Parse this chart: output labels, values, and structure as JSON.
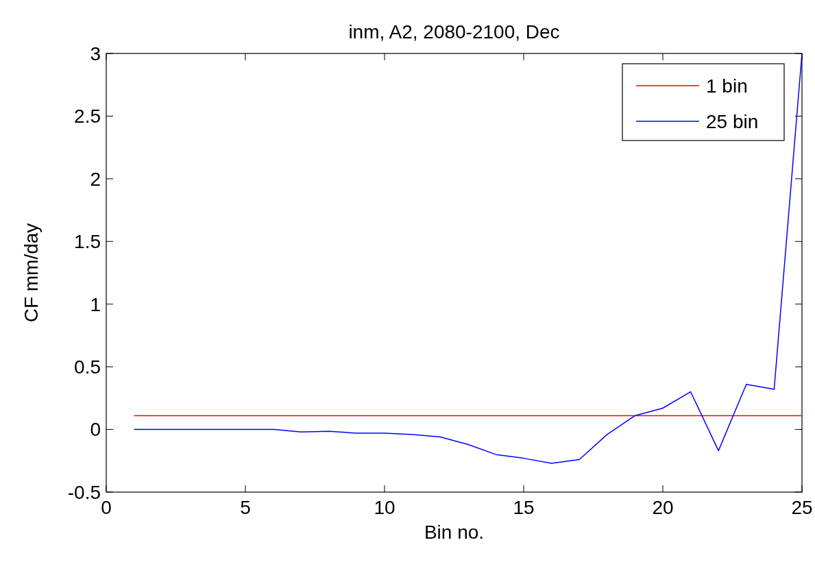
{
  "chart_data": {
    "type": "line",
    "title": "inm, A2, 2080-2100, Dec",
    "xlabel": "Bin no.",
    "ylabel": "CF mm/day",
    "x": [
      1,
      2,
      3,
      4,
      5,
      6,
      7,
      8,
      9,
      10,
      11,
      12,
      13,
      14,
      15,
      16,
      17,
      18,
      19,
      20,
      21,
      22,
      23,
      24,
      25
    ],
    "series": [
      {
        "name": "1 bin",
        "color": "#ff0000",
        "x": [
          1,
          25
        ],
        "values": [
          0.11,
          0.11
        ]
      },
      {
        "name": "25 bin",
        "color": "#0000ff",
        "values": [
          0,
          0,
          0,
          0,
          0,
          0,
          -0.02,
          -0.015,
          -0.03,
          -0.03,
          -0.04,
          -0.06,
          -0.12,
          -0.2,
          -0.23,
          -0.27,
          -0.24,
          -0.04,
          0.11,
          0.17,
          0.3,
          -0.17,
          0.36,
          0.32,
          3.0
        ]
      }
    ],
    "xlim": [
      0,
      25
    ],
    "xticks": [
      0,
      5,
      10,
      15,
      20,
      25
    ],
    "ylim": [
      -0.5,
      3
    ],
    "yticks": [
      -0.5,
      0,
      0.5,
      1,
      1.5,
      2,
      2.5,
      3
    ],
    "legend": "top right",
    "grid": false,
    "marker": "none",
    "line_style": "solid"
  }
}
